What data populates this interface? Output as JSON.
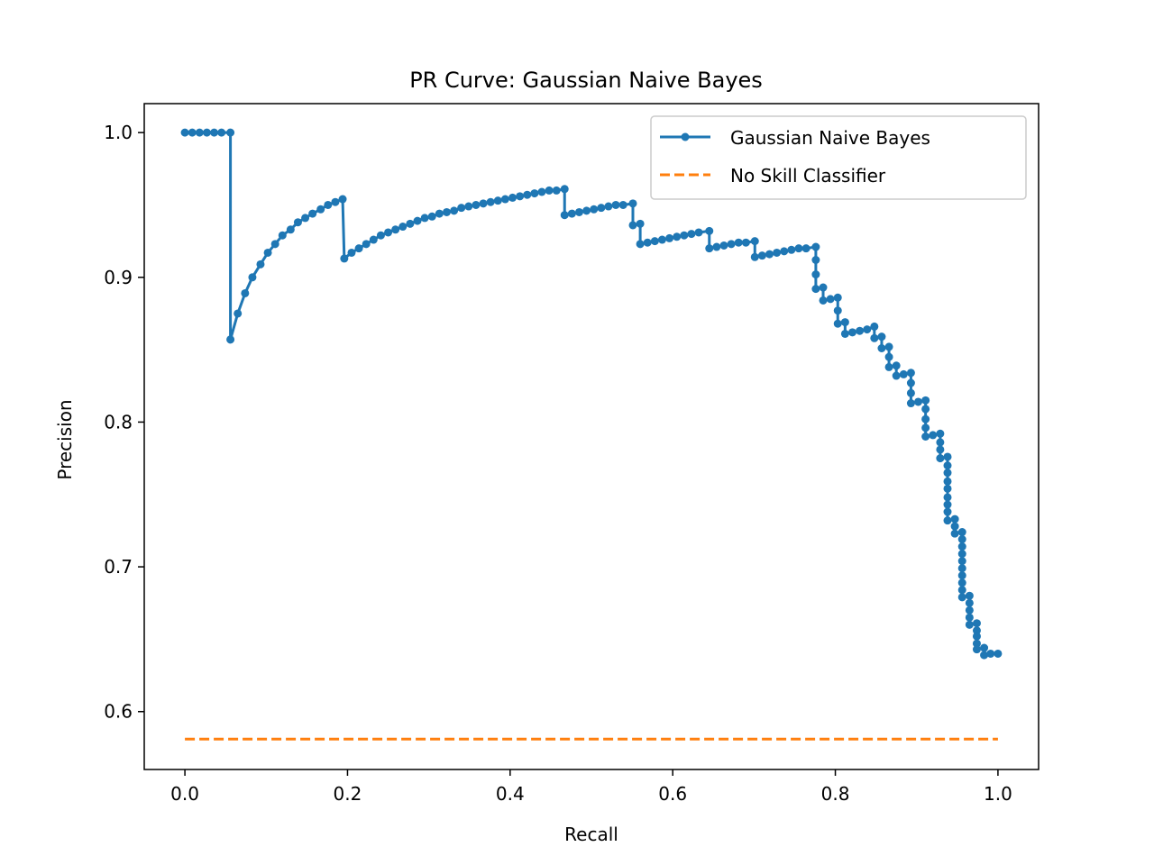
{
  "chart_data": {
    "type": "line",
    "title": "PR Curve: Gaussian Naive Bayes",
    "xlabel": "Recall",
    "ylabel": "Precision",
    "xlim": [
      -0.05,
      1.05
    ],
    "ylim": [
      0.56,
      1.02
    ],
    "xticks": [
      0.0,
      0.2,
      0.4,
      0.6,
      0.8,
      1.0
    ],
    "xtick_labels": [
      "0.0",
      "0.2",
      "0.4",
      "0.6",
      "0.8",
      "1.0"
    ],
    "yticks": [
      0.6,
      0.7,
      0.8,
      0.9,
      1.0
    ],
    "ytick_labels": [
      "0.6",
      "0.7",
      "0.8",
      "0.9",
      "1.0"
    ],
    "grid": false,
    "legend_position": "top-right",
    "series": [
      {
        "name": "Gaussian Naive Bayes",
        "color": "#1f77b4",
        "style": "solid-with-dots",
        "points": [
          [
            0.0,
            1.0
          ],
          [
            0.009,
            1.0
          ],
          [
            0.018,
            1.0
          ],
          [
            0.027,
            1.0
          ],
          [
            0.036,
            1.0
          ],
          [
            0.045,
            1.0
          ],
          [
            0.056,
            1.0
          ],
          [
            0.056,
            0.857
          ],
          [
            0.065,
            0.875
          ],
          [
            0.074,
            0.889
          ],
          [
            0.083,
            0.9
          ],
          [
            0.093,
            0.909
          ],
          [
            0.102,
            0.917
          ],
          [
            0.111,
            0.923
          ],
          [
            0.12,
            0.929
          ],
          [
            0.13,
            0.933
          ],
          [
            0.139,
            0.938
          ],
          [
            0.148,
            0.941
          ],
          [
            0.157,
            0.944
          ],
          [
            0.167,
            0.947
          ],
          [
            0.176,
            0.95
          ],
          [
            0.185,
            0.952
          ],
          [
            0.194,
            0.954
          ],
          [
            0.196,
            0.913
          ],
          [
            0.205,
            0.917
          ],
          [
            0.214,
            0.92
          ],
          [
            0.223,
            0.923
          ],
          [
            0.232,
            0.926
          ],
          [
            0.241,
            0.929
          ],
          [
            0.25,
            0.931
          ],
          [
            0.259,
            0.933
          ],
          [
            0.268,
            0.935
          ],
          [
            0.277,
            0.937
          ],
          [
            0.286,
            0.939
          ],
          [
            0.295,
            0.941
          ],
          [
            0.304,
            0.942
          ],
          [
            0.313,
            0.944
          ],
          [
            0.322,
            0.945
          ],
          [
            0.331,
            0.946
          ],
          [
            0.34,
            0.948
          ],
          [
            0.349,
            0.949
          ],
          [
            0.358,
            0.95
          ],
          [
            0.367,
            0.951
          ],
          [
            0.376,
            0.952
          ],
          [
            0.385,
            0.953
          ],
          [
            0.394,
            0.954
          ],
          [
            0.403,
            0.955
          ],
          [
            0.412,
            0.956
          ],
          [
            0.421,
            0.957
          ],
          [
            0.43,
            0.958
          ],
          [
            0.439,
            0.959
          ],
          [
            0.448,
            0.96
          ],
          [
            0.457,
            0.96
          ],
          [
            0.467,
            0.961
          ],
          [
            0.467,
            0.943
          ],
          [
            0.476,
            0.944
          ],
          [
            0.485,
            0.945
          ],
          [
            0.494,
            0.946
          ],
          [
            0.503,
            0.947
          ],
          [
            0.512,
            0.948
          ],
          [
            0.521,
            0.949
          ],
          [
            0.53,
            0.95
          ],
          [
            0.539,
            0.95
          ],
          [
            0.551,
            0.951
          ],
          [
            0.551,
            0.936
          ],
          [
            0.56,
            0.937
          ],
          [
            0.56,
            0.923
          ],
          [
            0.569,
            0.924
          ],
          [
            0.578,
            0.925
          ],
          [
            0.587,
            0.926
          ],
          [
            0.596,
            0.927
          ],
          [
            0.605,
            0.928
          ],
          [
            0.614,
            0.929
          ],
          [
            0.623,
            0.93
          ],
          [
            0.632,
            0.931
          ],
          [
            0.645,
            0.932
          ],
          [
            0.645,
            0.92
          ],
          [
            0.654,
            0.921
          ],
          [
            0.663,
            0.922
          ],
          [
            0.672,
            0.923
          ],
          [
            0.681,
            0.924
          ],
          [
            0.69,
            0.924
          ],
          [
            0.701,
            0.925
          ],
          [
            0.701,
            0.914
          ],
          [
            0.71,
            0.915
          ],
          [
            0.719,
            0.916
          ],
          [
            0.728,
            0.917
          ],
          [
            0.737,
            0.918
          ],
          [
            0.746,
            0.919
          ],
          [
            0.755,
            0.92
          ],
          [
            0.764,
            0.92
          ],
          [
            0.776,
            0.921
          ],
          [
            0.776,
            0.912
          ],
          [
            0.776,
            0.902
          ],
          [
            0.776,
            0.892
          ],
          [
            0.785,
            0.893
          ],
          [
            0.785,
            0.884
          ],
          [
            0.794,
            0.885
          ],
          [
            0.803,
            0.886
          ],
          [
            0.803,
            0.877
          ],
          [
            0.803,
            0.868
          ],
          [
            0.812,
            0.869
          ],
          [
            0.812,
            0.861
          ],
          [
            0.821,
            0.862
          ],
          [
            0.83,
            0.863
          ],
          [
            0.839,
            0.864
          ],
          [
            0.848,
            0.866
          ],
          [
            0.848,
            0.858
          ],
          [
            0.857,
            0.859
          ],
          [
            0.857,
            0.851
          ],
          [
            0.866,
            0.852
          ],
          [
            0.866,
            0.845
          ],
          [
            0.866,
            0.838
          ],
          [
            0.875,
            0.839
          ],
          [
            0.875,
            0.832
          ],
          [
            0.884,
            0.833
          ],
          [
            0.893,
            0.834
          ],
          [
            0.893,
            0.827
          ],
          [
            0.893,
            0.82
          ],
          [
            0.893,
            0.813
          ],
          [
            0.902,
            0.814
          ],
          [
            0.911,
            0.815
          ],
          [
            0.911,
            0.809
          ],
          [
            0.911,
            0.802
          ],
          [
            0.911,
            0.796
          ],
          [
            0.911,
            0.79
          ],
          [
            0.92,
            0.791
          ],
          [
            0.929,
            0.792
          ],
          [
            0.929,
            0.786
          ],
          [
            0.929,
            0.781
          ],
          [
            0.929,
            0.775
          ],
          [
            0.938,
            0.776
          ],
          [
            0.938,
            0.77
          ],
          [
            0.938,
            0.765
          ],
          [
            0.938,
            0.759
          ],
          [
            0.938,
            0.754
          ],
          [
            0.938,
            0.748
          ],
          [
            0.938,
            0.743
          ],
          [
            0.938,
            0.738
          ],
          [
            0.938,
            0.732
          ],
          [
            0.947,
            0.733
          ],
          [
            0.947,
            0.728
          ],
          [
            0.947,
            0.723
          ],
          [
            0.956,
            0.724
          ],
          [
            0.956,
            0.719
          ],
          [
            0.956,
            0.714
          ],
          [
            0.956,
            0.709
          ],
          [
            0.956,
            0.704
          ],
          [
            0.956,
            0.699
          ],
          [
            0.956,
            0.694
          ],
          [
            0.956,
            0.689
          ],
          [
            0.956,
            0.684
          ],
          [
            0.956,
            0.679
          ],
          [
            0.965,
            0.68
          ],
          [
            0.965,
            0.675
          ],
          [
            0.965,
            0.67
          ],
          [
            0.965,
            0.665
          ],
          [
            0.965,
            0.66
          ],
          [
            0.974,
            0.661
          ],
          [
            0.974,
            0.656
          ],
          [
            0.974,
            0.652
          ],
          [
            0.974,
            0.647
          ],
          [
            0.974,
            0.643
          ],
          [
            0.983,
            0.644
          ],
          [
            0.983,
            0.639
          ],
          [
            0.991,
            0.64
          ],
          [
            1.0,
            0.64
          ]
        ]
      },
      {
        "name": "No Skill Classifier",
        "color": "#ff7f0e",
        "style": "dashed",
        "points": [
          [
            0.0,
            0.581
          ],
          [
            1.0,
            0.581
          ]
        ]
      }
    ]
  }
}
